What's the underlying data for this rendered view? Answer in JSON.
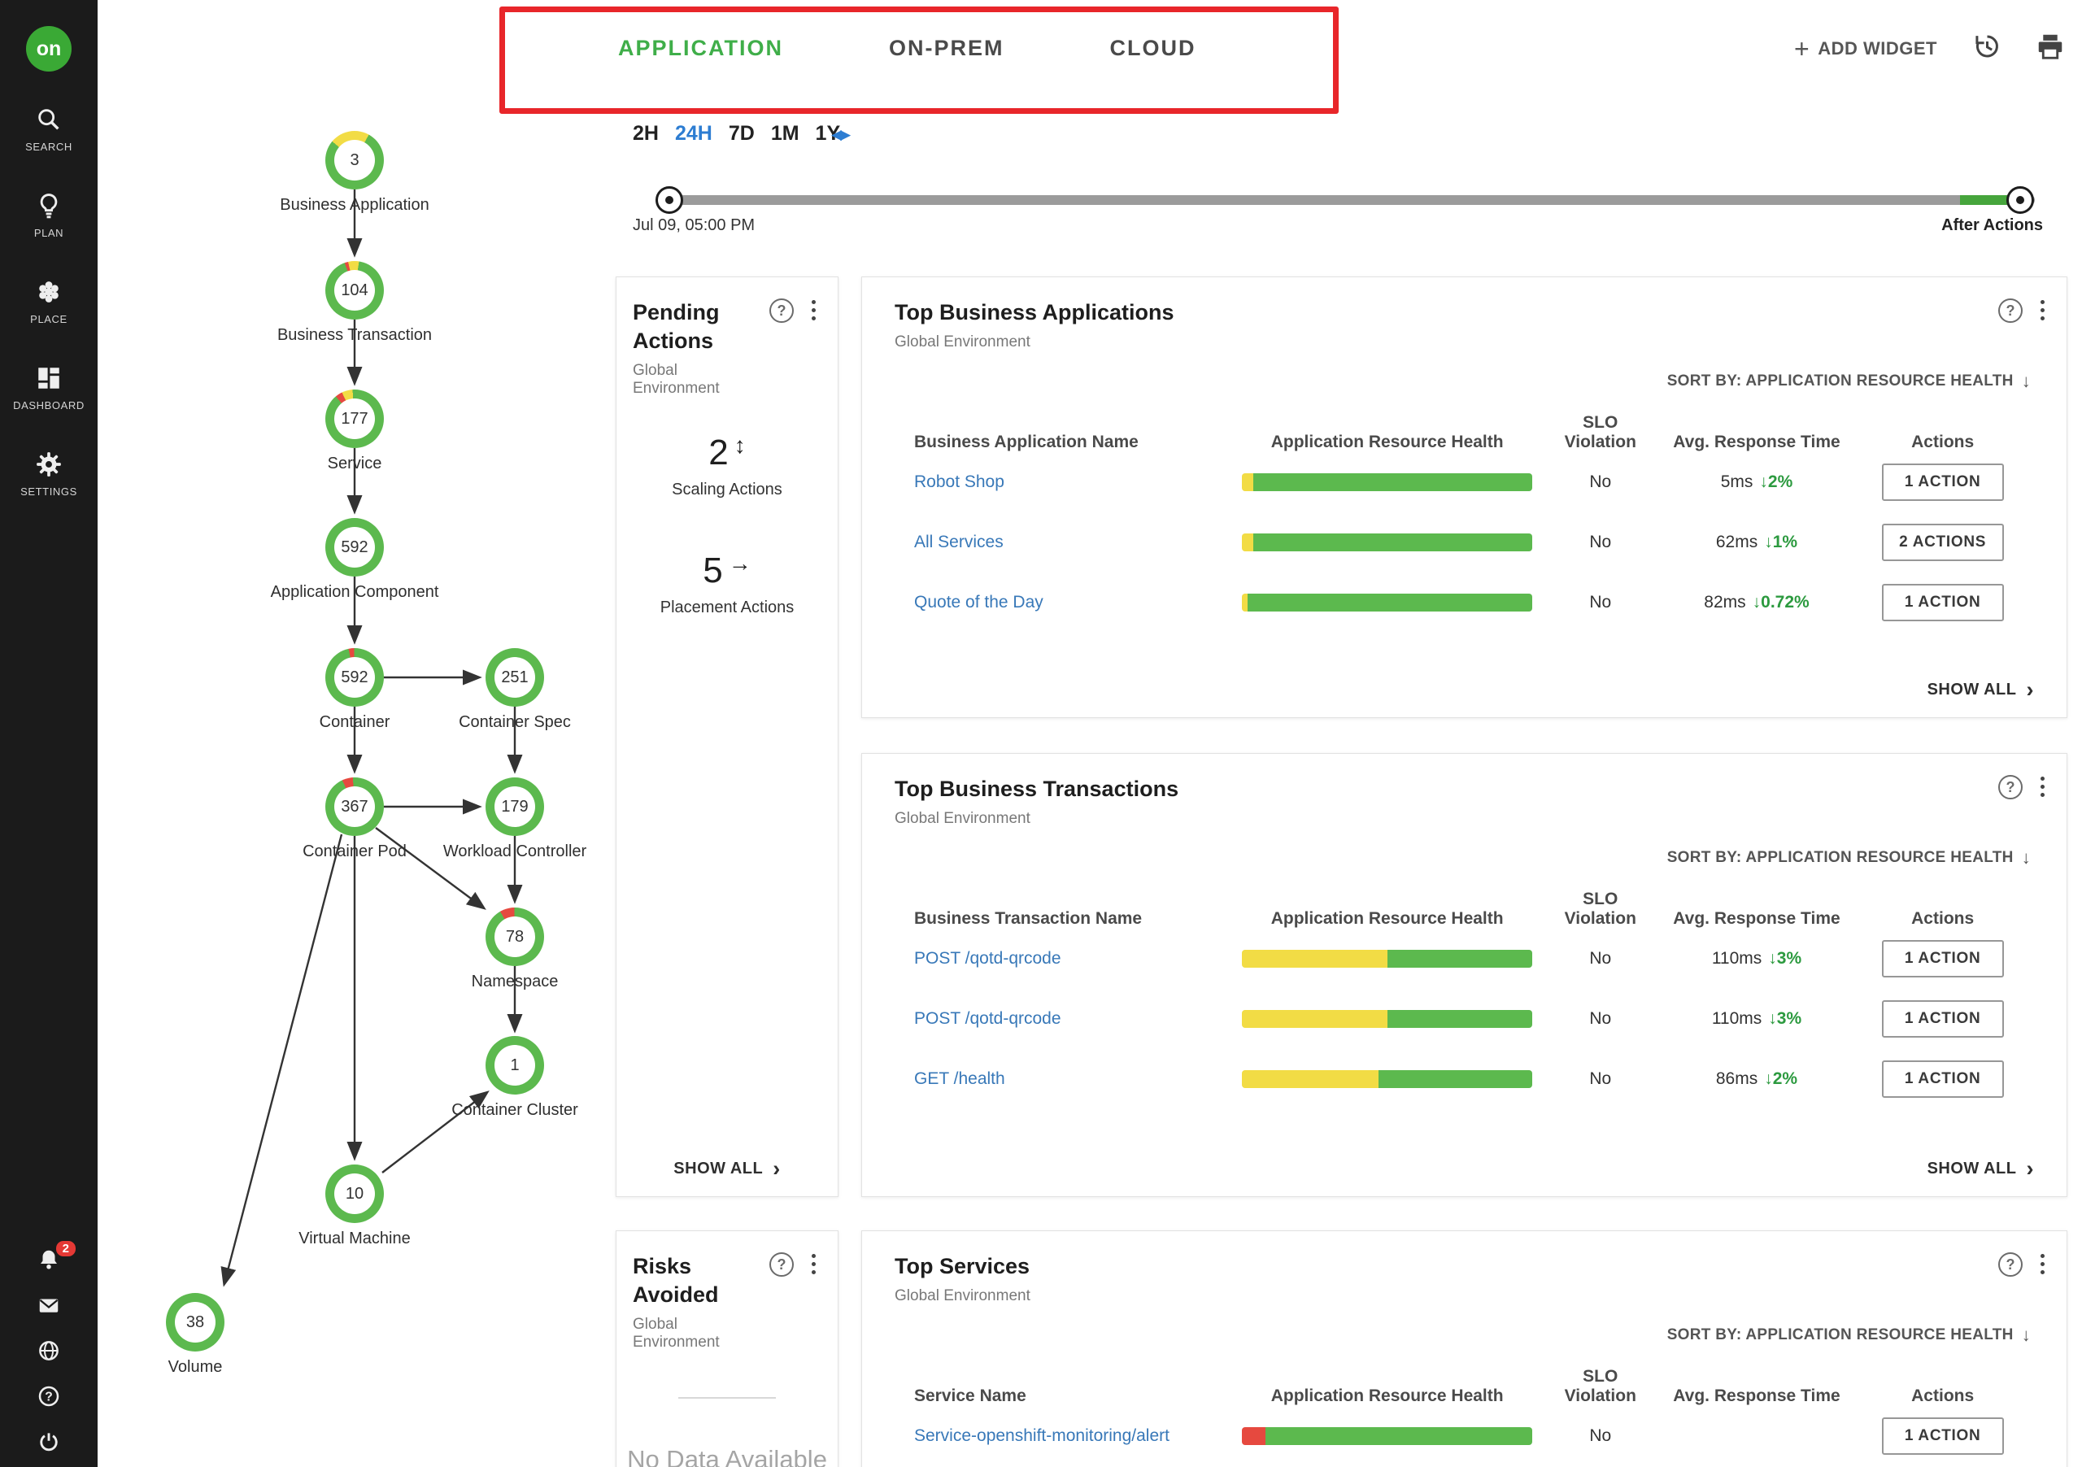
{
  "brand": {
    "logo": "on"
  },
  "colors": {
    "green": "#5cb94e",
    "yellow": "#f2dc45",
    "red": "#e6493f",
    "accent_green": "#3fae49",
    "link_blue": "#3878b8",
    "annotation_red": "#e8262a",
    "active_blue": "#2d7dd2"
  },
  "sidebar": {
    "items": [
      {
        "id": "search",
        "label": "SEARCH"
      },
      {
        "id": "plan",
        "label": "PLAN"
      },
      {
        "id": "place",
        "label": "PLACE"
      },
      {
        "id": "dashboard",
        "label": "DASHBOARD"
      },
      {
        "id": "settings",
        "label": "SETTINGS"
      }
    ],
    "notification_badge": "2"
  },
  "header": {
    "tabs": [
      {
        "label": "APPLICATION",
        "active": true
      },
      {
        "label": "ON-PREM",
        "active": false
      },
      {
        "label": "CLOUD",
        "active": false
      }
    ],
    "add_widget": "ADD WIDGET"
  },
  "timebar": {
    "ranges": [
      "2H",
      "24H",
      "7D",
      "1M",
      "1Y"
    ],
    "active": "24H",
    "start_label": "Jul 09, 05:00 PM",
    "end_label": "After Actions"
  },
  "supply_chain": {
    "nodes": [
      {
        "count": "3",
        "label": "Business Application",
        "from": -50,
        "segments": [
          [
            "yellow",
            22
          ],
          [
            "green",
            78
          ]
        ]
      },
      {
        "count": "104",
        "label": "Business Transaction",
        "from": -20,
        "segments": [
          [
            "red",
            2
          ],
          [
            "yellow",
            6
          ],
          [
            "green",
            92
          ]
        ]
      },
      {
        "count": "177",
        "label": "Service",
        "from": -40,
        "segments": [
          [
            "red",
            4
          ],
          [
            "yellow",
            6
          ],
          [
            "green",
            90
          ]
        ]
      },
      {
        "count": "592",
        "label": "Application Component",
        "from": 0,
        "segments": [
          [
            "green",
            100
          ]
        ]
      },
      {
        "count": "592",
        "label": "Container",
        "from": -12,
        "segments": [
          [
            "red",
            3
          ],
          [
            "green",
            97
          ]
        ]
      },
      {
        "count": "251",
        "label": "Container Spec",
        "from": 0,
        "segments": [
          [
            "green",
            100
          ]
        ]
      },
      {
        "count": "367",
        "label": "Container Pod",
        "from": -25,
        "segments": [
          [
            "red",
            6
          ],
          [
            "green",
            94
          ]
        ]
      },
      {
        "count": "179",
        "label": "Workload Controller",
        "from": 0,
        "segments": [
          [
            "green",
            100
          ]
        ]
      },
      {
        "count": "78",
        "label": "Namespace",
        "from": -30,
        "segments": [
          [
            "red",
            8
          ],
          [
            "green",
            92
          ]
        ]
      },
      {
        "count": "1",
        "label": "Container Cluster",
        "from": 0,
        "segments": [
          [
            "green",
            100
          ]
        ]
      },
      {
        "count": "10",
        "label": "Virtual Machine",
        "from": 0,
        "segments": [
          [
            "green",
            100
          ]
        ]
      },
      {
        "count": "38",
        "label": "Volume",
        "from": 0,
        "segments": [
          [
            "green",
            100
          ]
        ]
      }
    ]
  },
  "pending_actions": {
    "title": "Pending Actions",
    "scope": "Global Environment",
    "items": [
      {
        "count": "2",
        "icon": "scale-icon",
        "label": "Scaling Actions"
      },
      {
        "count": "5",
        "icon": "move-icon",
        "label": "Placement Actions"
      }
    ],
    "show_all": "SHOW ALL"
  },
  "risks_avoided": {
    "title": "Risks Avoided",
    "scope": "Global Environment",
    "empty": "No Data Available"
  },
  "tables": {
    "applications": {
      "title": "Top Business Applications",
      "scope": "Global Environment",
      "sort_by": "SORT BY: APPLICATION RESOURCE HEALTH",
      "columns": [
        "Business Application Name",
        "Application Resource Health",
        "SLO Violation",
        "Avg. Response Time",
        "Actions"
      ],
      "rows": [
        {
          "name": "Robot Shop",
          "health": [
            [
              "yellow",
              4
            ],
            [
              "green",
              96
            ]
          ],
          "slo": "No",
          "response": "5ms",
          "delta": "2%",
          "action": "1 ACTION"
        },
        {
          "name": "All Services",
          "health": [
            [
              "yellow",
              4
            ],
            [
              "green",
              96
            ]
          ],
          "slo": "No",
          "response": "62ms",
          "delta": "1%",
          "action": "2 ACTIONS"
        },
        {
          "name": "Quote of the Day",
          "health": [
            [
              "yellow",
              2
            ],
            [
              "green",
              98
            ]
          ],
          "slo": "No",
          "response": "82ms",
          "delta": "0.72%",
          "action": "1 ACTION"
        }
      ],
      "show_all": "SHOW ALL"
    },
    "transactions": {
      "title": "Top Business Transactions",
      "scope": "Global Environment",
      "sort_by": "SORT BY: APPLICATION RESOURCE HEALTH",
      "columns": [
        "Business Transaction Name",
        "Application Resource Health",
        "SLO Violation",
        "Avg. Response Time",
        "Actions"
      ],
      "rows": [
        {
          "name": "POST /qotd-qrcode",
          "health": [
            [
              "yellow",
              50
            ],
            [
              "green",
              50
            ]
          ],
          "slo": "No",
          "response": "110ms",
          "delta": "3%",
          "action": "1 ACTION"
        },
        {
          "name": "POST /qotd-qrcode",
          "health": [
            [
              "yellow",
              50
            ],
            [
              "green",
              50
            ]
          ],
          "slo": "No",
          "response": "110ms",
          "delta": "3%",
          "action": "1 ACTION"
        },
        {
          "name": "GET /health",
          "health": [
            [
              "yellow",
              47
            ],
            [
              "green",
              53
            ]
          ],
          "slo": "No",
          "response": "86ms",
          "delta": "2%",
          "action": "1 ACTION"
        }
      ],
      "show_all": "SHOW ALL"
    },
    "services": {
      "title": "Top Services",
      "scope": "Global Environment",
      "sort_by": "SORT BY: APPLICATION RESOURCE HEALTH",
      "columns": [
        "Service Name",
        "Application Resource Health",
        "SLO Violation",
        "Avg. Response Time",
        "Actions"
      ],
      "rows": [
        {
          "name": "Service-openshift-monitoring/alert",
          "health": [
            [
              "red",
              8
            ],
            [
              "green",
              92
            ]
          ],
          "slo": "No",
          "response": "",
          "delta": "",
          "action": "1 ACTION"
        }
      ]
    }
  }
}
